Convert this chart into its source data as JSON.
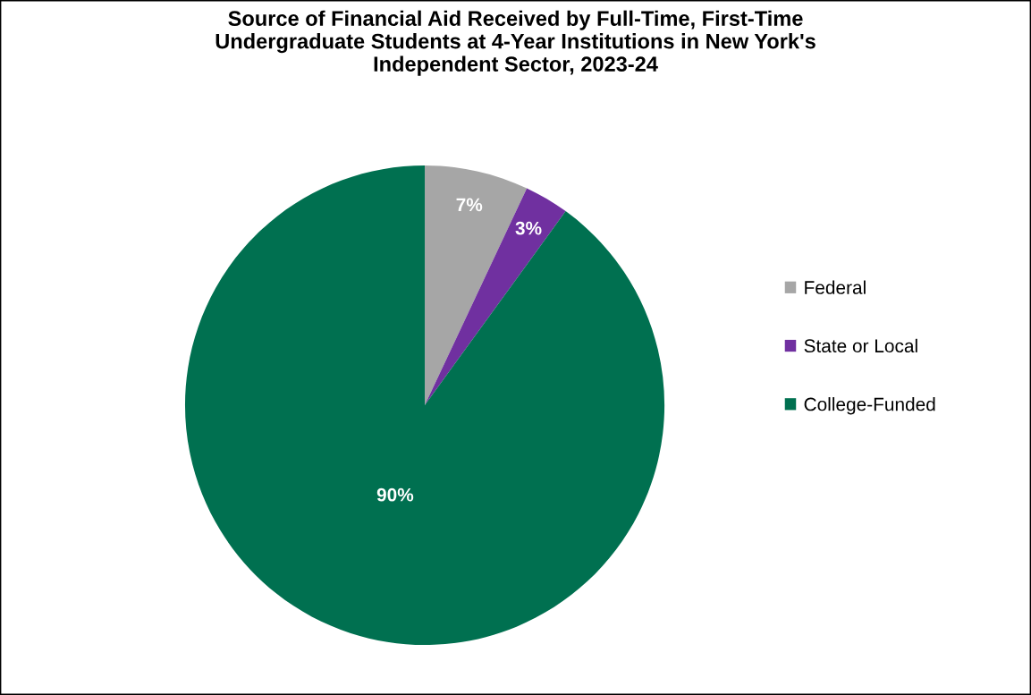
{
  "chart_data": {
    "type": "pie",
    "title": "Source of Financial Aid Received by Full-Time, First-Time\nUndergraduate Students at 4-Year Institutions in New York's\nIndependent Sector, 2023-24",
    "categories": [
      "Federal",
      "State or Local",
      "College-Funded"
    ],
    "values": [
      7,
      3,
      90
    ],
    "colors": [
      "#a6a6a6",
      "#7030a0",
      "#007050"
    ],
    "value_labels": [
      "7%",
      "3%",
      "90%"
    ],
    "legend": "right"
  }
}
